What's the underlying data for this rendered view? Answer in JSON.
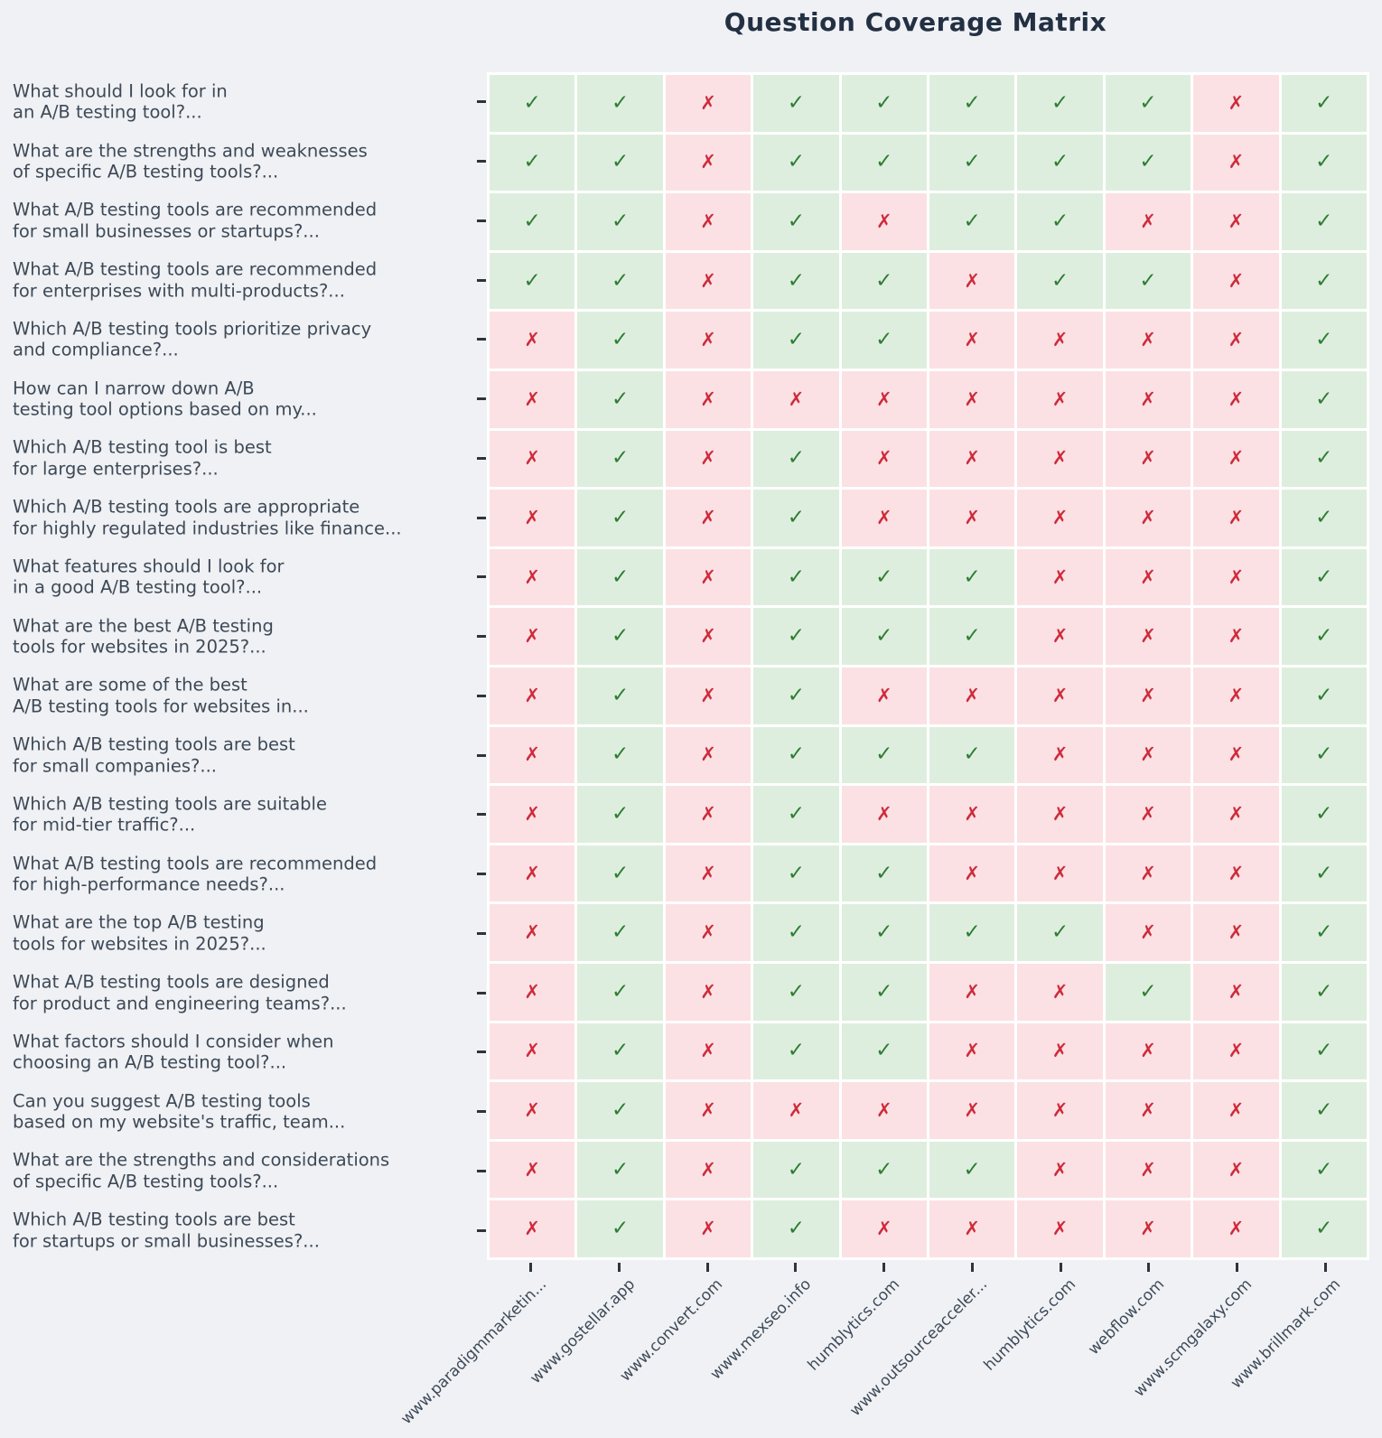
{
  "title": "Question Coverage Matrix",
  "chart_data": {
    "type": "heatmap",
    "title": "Question Coverage Matrix",
    "legend_position": "none",
    "grid": "white gaps between cells",
    "marks": {
      "covered": "✓",
      "not_covered": "✗"
    },
    "row_labels": [
      "What should I look for in\nan A/B testing tool?...",
      "What are the strengths and weaknesses\nof specific A/B testing tools?...",
      "What A/B testing tools are recommended\nfor small businesses or startups?...",
      "What A/B testing tools are recommended\nfor enterprises with multi-products?...",
      "Which A/B testing tools prioritize privacy\nand compliance?...",
      "How can I narrow down A/B\ntesting tool options based on my...",
      "Which A/B testing tool is best\nfor large enterprises?...",
      "Which A/B testing tools are appropriate\nfor highly regulated industries like finance...",
      "What features should I look for\nin a good A/B testing tool?...",
      "What are the best A/B testing\ntools for websites in 2025?...",
      "What are some of the best\nA/B testing tools for websites in...",
      "Which A/B testing tools are best\nfor small companies?...",
      "Which A/B testing tools are suitable\nfor mid-tier traffic?...",
      "What A/B testing tools are recommended\nfor high-performance needs?...",
      "What are the top A/B testing\ntools for websites in 2025?...",
      "What A/B testing tools are designed\nfor product and engineering teams?...",
      "What factors should I consider when\nchoosing an A/B testing tool?...",
      "Can you suggest A/B testing tools\nbased on my website's traffic, team...",
      "What are the strengths and considerations\nof specific A/B testing tools?...",
      "Which A/B testing tools are best\nfor startups or small businesses?..."
    ],
    "col_labels": [
      "www.paradigmmarketin...",
      "www.gostellar.app",
      "www.convert.com",
      "www.mexseo.info",
      "humblytics.com",
      "www.outsourceacceler...",
      "humblytics.com",
      "webflow.com",
      "www.scmgalaxy.com",
      "www.brillmark.com"
    ],
    "matrix": [
      [
        1,
        1,
        0,
        1,
        1,
        1,
        1,
        1,
        0,
        1
      ],
      [
        1,
        1,
        0,
        1,
        1,
        1,
        1,
        1,
        0,
        1
      ],
      [
        1,
        1,
        0,
        1,
        0,
        1,
        1,
        0,
        0,
        1
      ],
      [
        1,
        1,
        0,
        1,
        1,
        0,
        1,
        1,
        0,
        1
      ],
      [
        0,
        1,
        0,
        1,
        1,
        0,
        0,
        0,
        0,
        1
      ],
      [
        0,
        1,
        0,
        0,
        0,
        0,
        0,
        0,
        0,
        1
      ],
      [
        0,
        1,
        0,
        1,
        0,
        0,
        0,
        0,
        0,
        1
      ],
      [
        0,
        1,
        0,
        1,
        0,
        0,
        0,
        0,
        0,
        1
      ],
      [
        0,
        1,
        0,
        1,
        1,
        1,
        0,
        0,
        0,
        1
      ],
      [
        0,
        1,
        0,
        1,
        1,
        1,
        0,
        0,
        0,
        1
      ],
      [
        0,
        1,
        0,
        1,
        0,
        0,
        0,
        0,
        0,
        1
      ],
      [
        0,
        1,
        0,
        1,
        1,
        1,
        0,
        0,
        0,
        1
      ],
      [
        0,
        1,
        0,
        1,
        0,
        0,
        0,
        0,
        0,
        1
      ],
      [
        0,
        1,
        0,
        1,
        1,
        0,
        0,
        0,
        0,
        1
      ],
      [
        0,
        1,
        0,
        1,
        1,
        1,
        1,
        0,
        0,
        1
      ],
      [
        0,
        1,
        0,
        1,
        1,
        0,
        0,
        1,
        0,
        1
      ],
      [
        0,
        1,
        0,
        1,
        1,
        0,
        0,
        0,
        0,
        1
      ],
      [
        0,
        1,
        0,
        0,
        0,
        0,
        0,
        0,
        0,
        1
      ],
      [
        0,
        1,
        0,
        1,
        1,
        1,
        0,
        0,
        0,
        1
      ],
      [
        0,
        1,
        0,
        1,
        0,
        0,
        0,
        0,
        0,
        1
      ]
    ]
  },
  "colors": {
    "page_bg": "#eff1f4",
    "grid_line": "#ffffff",
    "covered_bg": "#deeede",
    "uncovered_bg": "#fbe1e4",
    "check": "#2e7d32",
    "cross": "#ce2b3b",
    "title": "#233043",
    "labels": "#3e4957",
    "ticks": "#2d343c"
  }
}
